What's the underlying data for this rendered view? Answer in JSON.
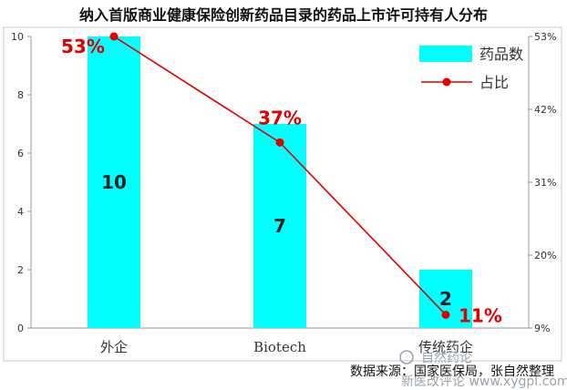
{
  "chart_data": {
    "type": "bar+line",
    "title": "纳入首版商业健康保险创新药品目录的药品上市许可持有人分布",
    "categories": [
      "外企",
      "Biotech",
      "传统药企"
    ],
    "series": [
      {
        "name": "药品数",
        "type": "bar",
        "values": [
          10,
          7,
          2
        ],
        "labels": [
          "10",
          "7",
          "2"
        ],
        "color": "#00ffff",
        "axis": "left"
      },
      {
        "name": "占比",
        "type": "line",
        "values": [
          53,
          37,
          11
        ],
        "labels": [
          "53%",
          "37%",
          "11%"
        ],
        "color": "#e00000",
        "axis": "right"
      }
    ],
    "y_left": {
      "min": 0,
      "max": 10,
      "ticks": [
        "0",
        "2",
        "4",
        "6",
        "8",
        "10"
      ]
    },
    "y_right": {
      "min": 9,
      "max": 53,
      "ticks": [
        "9%",
        "20%",
        "31%",
        "42%",
        "53%"
      ]
    },
    "grid": false,
    "legend_position": "top-right"
  },
  "source": "数据来源：国家医保局，张自然整理",
  "watermark": {
    "line1": "自然药论",
    "line2": "新医改评论 www.xygpl.com"
  }
}
